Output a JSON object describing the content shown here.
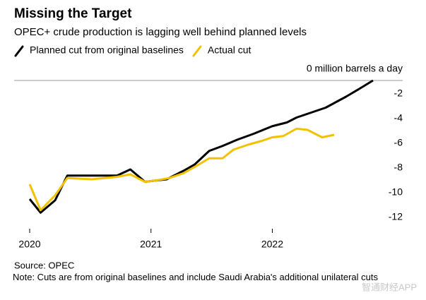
{
  "chart_data": {
    "type": "line",
    "title": "Missing the Target",
    "subtitle": "OPEC+ crude production is lagging well behind planned levels",
    "source": "Source: OPEC",
    "note": "Note: Cuts are from original baselines and include Saudi Arabia's additional unilateral cuts",
    "watermark": "智通财经APP",
    "xlim": [
      2020,
      2022.9
    ],
    "xticks": [
      2020,
      2021,
      2022
    ],
    "ylim": [
      -12,
      0
    ],
    "yticks": [
      {
        "value": 0,
        "label": "0 million barrels a day"
      },
      -2,
      -4,
      -6,
      -8,
      -10,
      -12
    ],
    "series": [
      {
        "name": "Planned cut from original baselines",
        "color": "#000000",
        "x": [
          2020.0,
          2020.09,
          2020.21,
          2020.31,
          2020.51,
          2020.72,
          2020.83,
          2020.95,
          2021.13,
          2021.27,
          2021.36,
          2021.48,
          2021.59,
          2021.71,
          2021.85,
          2022.0,
          2022.12,
          2022.2,
          2022.32,
          2022.44,
          2022.61,
          2022.73,
          2022.83
        ],
        "values": [
          -9.6,
          -10.7,
          -9.7,
          -7.7,
          -7.7,
          -7.7,
          -7.2,
          -8.2,
          -8.0,
          -7.3,
          -6.8,
          -5.7,
          -5.3,
          -4.8,
          -4.3,
          -3.7,
          -3.4,
          -3.0,
          -2.6,
          -2.2,
          -1.3,
          -0.6,
          0
        ]
      },
      {
        "name": "Actual cut",
        "color": "#f2c200",
        "x": [
          2020.0,
          2020.09,
          2020.21,
          2020.31,
          2020.51,
          2020.72,
          2020.83,
          2020.95,
          2021.04,
          2021.15,
          2021.27,
          2021.36,
          2021.48,
          2021.59,
          2021.68,
          2021.8,
          2021.91,
          2022.0,
          2022.09,
          2022.2,
          2022.29,
          2022.41,
          2022.51
        ],
        "values": [
          -8.4,
          -10.5,
          -9.3,
          -7.9,
          -8.0,
          -7.8,
          -7.6,
          -8.2,
          -8.1,
          -7.9,
          -7.5,
          -7.0,
          -6.3,
          -6.3,
          -5.6,
          -5.2,
          -4.9,
          -4.6,
          -4.5,
          -3.9,
          -4.0,
          -4.6,
          -4.4
        ]
      }
    ]
  }
}
